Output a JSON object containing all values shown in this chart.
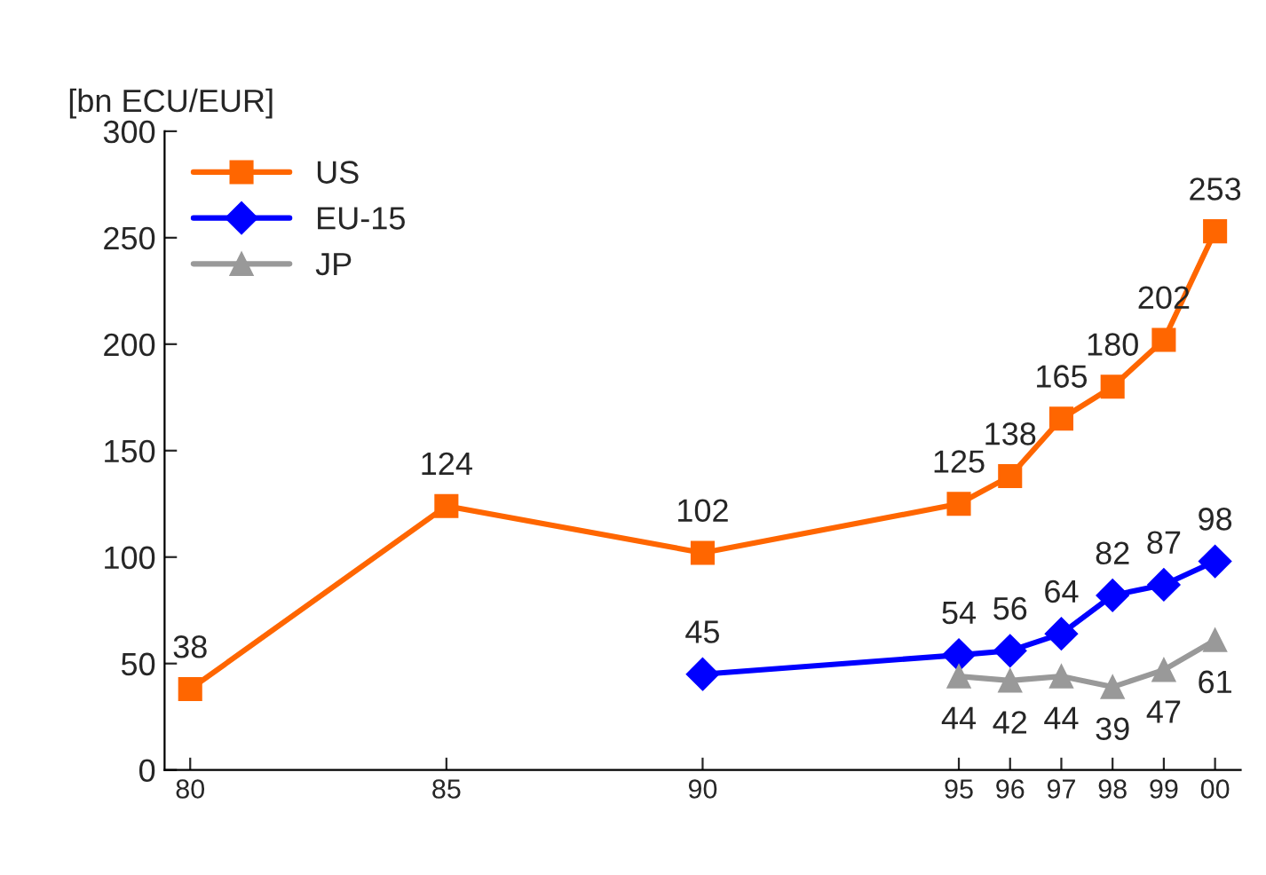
{
  "chart_data": {
    "type": "line",
    "ylabel": "[bn ECU/EUR]",
    "x": [
      1980,
      1985,
      1990,
      1995,
      1996,
      1997,
      1998,
      1999,
      2000
    ],
    "series": [
      {
        "name": "US",
        "color": "#ff6600",
        "marker": "square",
        "values": [
          38,
          124,
          102,
          125,
          138,
          165,
          180,
          202,
          253
        ]
      },
      {
        "name": "EU-15",
        "color": "#0000ff",
        "marker": "diamond",
        "values": [
          null,
          null,
          45,
          54,
          56,
          64,
          82,
          87,
          98
        ]
      },
      {
        "name": "JP",
        "color": "#999999",
        "marker": "triangle",
        "values": [
          null,
          null,
          null,
          44,
          42,
          44,
          39,
          47,
          61
        ]
      }
    ],
    "xlim": [
      1979.5,
      2000.5
    ],
    "xticks": [
      {
        "value": 1980,
        "label": "80"
      },
      {
        "value": 1985,
        "label": "85"
      },
      {
        "value": 1990,
        "label": "90"
      },
      {
        "value": 1995,
        "label": "95"
      },
      {
        "value": 1996,
        "label": "96"
      },
      {
        "value": 1997,
        "label": "97"
      },
      {
        "value": 1998,
        "label": "98"
      },
      {
        "value": 1999,
        "label": "99"
      },
      {
        "value": 2000,
        "label": "00"
      }
    ],
    "ylim": [
      0,
      300
    ],
    "yticks": [
      0,
      50,
      100,
      150,
      200,
      250,
      300
    ],
    "data_labels": true,
    "legend": "top left",
    "grid": false,
    "line_style": "solid"
  }
}
